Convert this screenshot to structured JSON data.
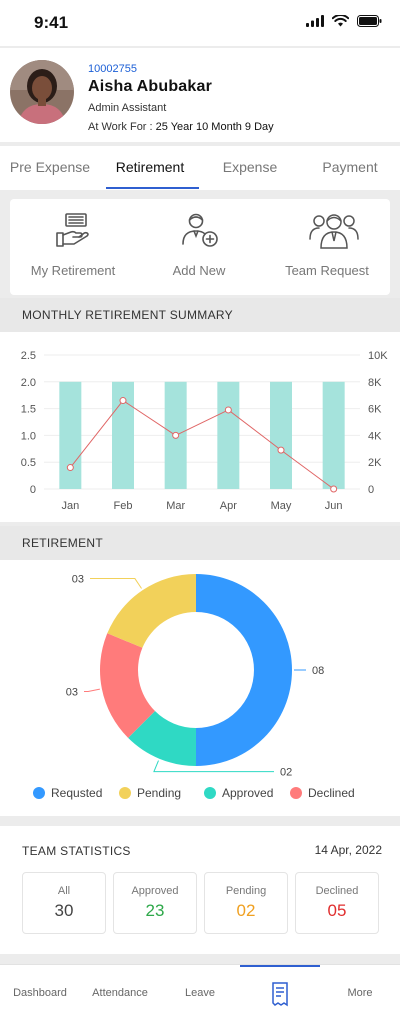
{
  "status_bar": {
    "time": "9:41"
  },
  "profile": {
    "employee_id": "10002755",
    "name": "Aisha Abubakar",
    "role": "Admin Assistant",
    "work_label": "At Work For : ",
    "work_duration": "25 Year 10 Month 9 Day"
  },
  "tabs": [
    {
      "label": "Pre Expense"
    },
    {
      "label": "Retirement"
    },
    {
      "label": "Expense"
    },
    {
      "label": "Payment"
    }
  ],
  "active_tab": "Retirement",
  "actions": [
    {
      "label": "My Retirement",
      "icon": "hand-money-icon"
    },
    {
      "label": "Add New",
      "icon": "add-user-icon"
    },
    {
      "label": "Team Request",
      "icon": "team-icon"
    }
  ],
  "monthly_summary": {
    "title": "MONTHLY RETIREMENT SUMMARY"
  },
  "chart_data": {
    "type": "bar",
    "categories": [
      "Jan",
      "Feb",
      "Mar",
      "Apr",
      "May",
      "Jun"
    ],
    "series": [
      {
        "type": "bar",
        "axis": "left",
        "values": [
          2.0,
          2.0,
          2.0,
          2.0,
          2.0,
          2.0
        ],
        "color": "#a5e3dc"
      },
      {
        "type": "line",
        "axis": "right",
        "values": [
          1600,
          6600,
          4000,
          5900,
          2900,
          0
        ],
        "color": "#e06666"
      }
    ],
    "y_left": {
      "ticks": [
        "0",
        "0.5",
        "1.0",
        "1.5",
        "2.0",
        "2.5"
      ],
      "range": [
        0,
        2.5
      ]
    },
    "y_right": {
      "ticks": [
        "0",
        "2K",
        "4K",
        "6K",
        "8K",
        "10K"
      ],
      "range": [
        0,
        10000
      ]
    },
    "grid": true
  },
  "retirement": {
    "title": "RETIREMENT",
    "donut": [
      {
        "name": "Requsted",
        "value": 8,
        "label": "08",
        "color": "#3399ff"
      },
      {
        "name": "Approved",
        "value": 2,
        "label": "02",
        "color": "#2fd9c4"
      },
      {
        "name": "Declined",
        "value": 3,
        "label": "03",
        "color": "#ff7b7b"
      },
      {
        "name": "Pending",
        "value": 3,
        "label": "03",
        "color": "#f2d15a"
      }
    ],
    "legend": [
      "Requsted",
      "Pending",
      "Approved",
      "Declined"
    ]
  },
  "team_statistics": {
    "title": "TEAM STATISTICS",
    "date": "14 Apr, 2022",
    "stats": [
      {
        "label": "All",
        "value": "30",
        "color": "#444444"
      },
      {
        "label": "Approved",
        "value": "23",
        "color": "#2ea84a"
      },
      {
        "label": "Pending",
        "value": "02",
        "color": "#f0a020"
      },
      {
        "label": "Declined",
        "value": "05",
        "color": "#e02e2e"
      }
    ]
  },
  "bottom_nav": [
    {
      "label": "Dashboard"
    },
    {
      "label": "Attendance"
    },
    {
      "label": "Leave"
    },
    {
      "label": ""
    },
    {
      "label": "More"
    }
  ]
}
